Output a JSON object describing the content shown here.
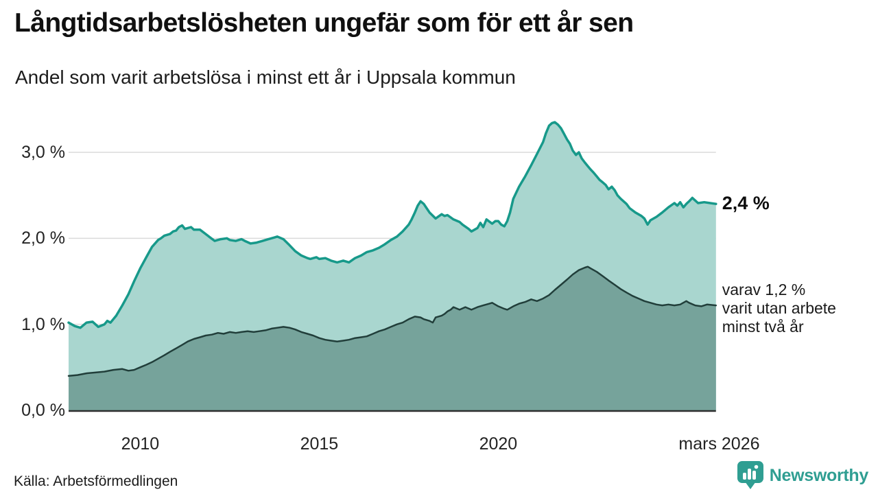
{
  "chart_data": {
    "type": "area",
    "title": "Långtidsarbetslösheten ungefär som för ett år sen",
    "subtitle": "Andel som varit arbetslösa i minst ett år i Uppsala kommun",
    "unit": "%",
    "xlim": [
      2008.0,
      2026.17
    ],
    "ylim": [
      0,
      3.5
    ],
    "grid": "horizontal",
    "legend_position": "right-annotations",
    "x_ticks": [
      {
        "label": "2010",
        "year": 2010
      },
      {
        "label": "2015",
        "year": 2015
      },
      {
        "label": "2020",
        "year": 2020
      },
      {
        "label": "mars 2026",
        "year": 2026.17
      }
    ],
    "y_ticks": [
      {
        "label": "0,0 %",
        "value": 0
      },
      {
        "label": "1,0 %",
        "value": 1
      },
      {
        "label": "2,0 %",
        "value": 2
      },
      {
        "label": "3,0 %",
        "value": 3
      }
    ],
    "series": [
      {
        "id": "one_year",
        "name": "Andel arbetslösa minst ett år",
        "line_color": "#17998a",
        "fill_color": "#a9d6cf",
        "end_value": 2.4,
        "end_label": "2,4 %",
        "points": [
          [
            2008.0,
            1.02
          ],
          [
            2008.17,
            0.98
          ],
          [
            2008.33,
            0.96
          ],
          [
            2008.5,
            1.02
          ],
          [
            2008.67,
            1.03
          ],
          [
            2008.83,
            0.97
          ],
          [
            2009.0,
            1.0
          ],
          [
            2009.08,
            1.04
          ],
          [
            2009.17,
            1.02
          ],
          [
            2009.33,
            1.1
          ],
          [
            2009.5,
            1.22
          ],
          [
            2009.67,
            1.35
          ],
          [
            2009.83,
            1.5
          ],
          [
            2010.0,
            1.65
          ],
          [
            2010.17,
            1.78
          ],
          [
            2010.33,
            1.9
          ],
          [
            2010.5,
            1.98
          ],
          [
            2010.58,
            2.0
          ],
          [
            2010.67,
            2.03
          ],
          [
            2010.83,
            2.05
          ],
          [
            2010.92,
            2.08
          ],
          [
            2011.0,
            2.09
          ],
          [
            2011.08,
            2.13
          ],
          [
            2011.17,
            2.15
          ],
          [
            2011.25,
            2.11
          ],
          [
            2011.42,
            2.13
          ],
          [
            2011.5,
            2.1
          ],
          [
            2011.67,
            2.1
          ],
          [
            2011.83,
            2.05
          ],
          [
            2011.92,
            2.02
          ],
          [
            2012.08,
            1.97
          ],
          [
            2012.25,
            1.99
          ],
          [
            2012.42,
            2.0
          ],
          [
            2012.5,
            1.98
          ],
          [
            2012.67,
            1.97
          ],
          [
            2012.83,
            1.99
          ],
          [
            2012.92,
            1.97
          ],
          [
            2013.08,
            1.94
          ],
          [
            2013.25,
            1.95
          ],
          [
            2013.42,
            1.97
          ],
          [
            2013.58,
            1.99
          ],
          [
            2013.75,
            2.01
          ],
          [
            2013.83,
            2.02
          ],
          [
            2014.0,
            1.99
          ],
          [
            2014.17,
            1.92
          ],
          [
            2014.33,
            1.85
          ],
          [
            2014.5,
            1.8
          ],
          [
            2014.67,
            1.77
          ],
          [
            2014.75,
            1.76
          ],
          [
            2014.92,
            1.78
          ],
          [
            2015.0,
            1.76
          ],
          [
            2015.17,
            1.77
          ],
          [
            2015.33,
            1.74
          ],
          [
            2015.5,
            1.72
          ],
          [
            2015.67,
            1.74
          ],
          [
            2015.83,
            1.72
          ],
          [
            2016.0,
            1.77
          ],
          [
            2016.17,
            1.8
          ],
          [
            2016.33,
            1.84
          ],
          [
            2016.5,
            1.86
          ],
          [
            2016.67,
            1.89
          ],
          [
            2016.83,
            1.93
          ],
          [
            2017.0,
            1.98
          ],
          [
            2017.17,
            2.02
          ],
          [
            2017.33,
            2.08
          ],
          [
            2017.5,
            2.16
          ],
          [
            2017.58,
            2.22
          ],
          [
            2017.67,
            2.3
          ],
          [
            2017.75,
            2.38
          ],
          [
            2017.83,
            2.43
          ],
          [
            2017.92,
            2.4
          ],
          [
            2018.0,
            2.35
          ],
          [
            2018.08,
            2.3
          ],
          [
            2018.25,
            2.23
          ],
          [
            2018.42,
            2.28
          ],
          [
            2018.5,
            2.26
          ],
          [
            2018.58,
            2.27
          ],
          [
            2018.75,
            2.22
          ],
          [
            2018.92,
            2.19
          ],
          [
            2019.0,
            2.16
          ],
          [
            2019.17,
            2.11
          ],
          [
            2019.25,
            2.08
          ],
          [
            2019.42,
            2.12
          ],
          [
            2019.5,
            2.18
          ],
          [
            2019.58,
            2.13
          ],
          [
            2019.67,
            2.22
          ],
          [
            2019.83,
            2.17
          ],
          [
            2019.92,
            2.2
          ],
          [
            2020.0,
            2.2
          ],
          [
            2020.08,
            2.16
          ],
          [
            2020.17,
            2.14
          ],
          [
            2020.25,
            2.2
          ],
          [
            2020.33,
            2.3
          ],
          [
            2020.42,
            2.46
          ],
          [
            2020.58,
            2.6
          ],
          [
            2020.75,
            2.72
          ],
          [
            2020.92,
            2.85
          ],
          [
            2021.08,
            2.98
          ],
          [
            2021.25,
            3.12
          ],
          [
            2021.33,
            3.22
          ],
          [
            2021.42,
            3.31
          ],
          [
            2021.5,
            3.34
          ],
          [
            2021.58,
            3.35
          ],
          [
            2021.67,
            3.32
          ],
          [
            2021.75,
            3.28
          ],
          [
            2021.83,
            3.22
          ],
          [
            2021.92,
            3.15
          ],
          [
            2022.0,
            3.1
          ],
          [
            2022.08,
            3.02
          ],
          [
            2022.17,
            2.97
          ],
          [
            2022.25,
            3.0
          ],
          [
            2022.33,
            2.93
          ],
          [
            2022.42,
            2.88
          ],
          [
            2022.5,
            2.84
          ],
          [
            2022.58,
            2.8
          ],
          [
            2022.67,
            2.76
          ],
          [
            2022.75,
            2.72
          ],
          [
            2022.83,
            2.68
          ],
          [
            2022.92,
            2.65
          ],
          [
            2023.0,
            2.62
          ],
          [
            2023.08,
            2.57
          ],
          [
            2023.17,
            2.6
          ],
          [
            2023.25,
            2.56
          ],
          [
            2023.33,
            2.5
          ],
          [
            2023.42,
            2.46
          ],
          [
            2023.5,
            2.43
          ],
          [
            2023.58,
            2.4
          ],
          [
            2023.67,
            2.35
          ],
          [
            2023.83,
            2.3
          ],
          [
            2024.0,
            2.26
          ],
          [
            2024.08,
            2.23
          ],
          [
            2024.17,
            2.16
          ],
          [
            2024.25,
            2.21
          ],
          [
            2024.42,
            2.25
          ],
          [
            2024.58,
            2.3
          ],
          [
            2024.75,
            2.36
          ],
          [
            2024.92,
            2.41
          ],
          [
            2025.0,
            2.38
          ],
          [
            2025.08,
            2.42
          ],
          [
            2025.17,
            2.36
          ],
          [
            2025.25,
            2.4
          ],
          [
            2025.33,
            2.43
          ],
          [
            2025.42,
            2.47
          ],
          [
            2025.5,
            2.44
          ],
          [
            2025.58,
            2.41
          ],
          [
            2025.75,
            2.42
          ],
          [
            2025.92,
            2.41
          ],
          [
            2026.08,
            2.4
          ]
        ]
      },
      {
        "id": "two_years",
        "name": "varav varit utan arbete minst två år",
        "line_color": "#213e3a",
        "fill_color": "#76a39b",
        "end_value": 1.2,
        "end_label": "varav 1,2 %\nvarit utan arbete\nminst två år",
        "points": [
          [
            2008.0,
            0.4
          ],
          [
            2008.25,
            0.41
          ],
          [
            2008.5,
            0.43
          ],
          [
            2008.75,
            0.44
          ],
          [
            2009.0,
            0.45
          ],
          [
            2009.25,
            0.47
          ],
          [
            2009.5,
            0.48
          ],
          [
            2009.67,
            0.46
          ],
          [
            2009.83,
            0.47
          ],
          [
            2010.0,
            0.5
          ],
          [
            2010.17,
            0.53
          ],
          [
            2010.33,
            0.56
          ],
          [
            2010.5,
            0.6
          ],
          [
            2010.67,
            0.64
          ],
          [
            2010.83,
            0.68
          ],
          [
            2011.0,
            0.72
          ],
          [
            2011.17,
            0.76
          ],
          [
            2011.33,
            0.8
          ],
          [
            2011.5,
            0.83
          ],
          [
            2011.67,
            0.85
          ],
          [
            2011.83,
            0.87
          ],
          [
            2012.0,
            0.88
          ],
          [
            2012.17,
            0.9
          ],
          [
            2012.33,
            0.89
          ],
          [
            2012.5,
            0.91
          ],
          [
            2012.67,
            0.9
          ],
          [
            2012.83,
            0.91
          ],
          [
            2013.0,
            0.92
          ],
          [
            2013.17,
            0.91
          ],
          [
            2013.33,
            0.92
          ],
          [
            2013.5,
            0.93
          ],
          [
            2013.67,
            0.95
          ],
          [
            2013.83,
            0.96
          ],
          [
            2014.0,
            0.97
          ],
          [
            2014.17,
            0.96
          ],
          [
            2014.33,
            0.94
          ],
          [
            2014.5,
            0.91
          ],
          [
            2014.67,
            0.89
          ],
          [
            2014.83,
            0.87
          ],
          [
            2015.0,
            0.84
          ],
          [
            2015.17,
            0.82
          ],
          [
            2015.33,
            0.81
          ],
          [
            2015.5,
            0.8
          ],
          [
            2015.67,
            0.81
          ],
          [
            2015.83,
            0.82
          ],
          [
            2016.0,
            0.84
          ],
          [
            2016.17,
            0.85
          ],
          [
            2016.33,
            0.86
          ],
          [
            2016.5,
            0.89
          ],
          [
            2016.67,
            0.92
          ],
          [
            2016.83,
            0.94
          ],
          [
            2017.0,
            0.97
          ],
          [
            2017.17,
            1.0
          ],
          [
            2017.33,
            1.02
          ],
          [
            2017.5,
            1.06
          ],
          [
            2017.67,
            1.09
          ],
          [
            2017.83,
            1.08
          ],
          [
            2017.92,
            1.06
          ],
          [
            2018.08,
            1.04
          ],
          [
            2018.17,
            1.02
          ],
          [
            2018.25,
            1.08
          ],
          [
            2018.42,
            1.1
          ],
          [
            2018.5,
            1.12
          ],
          [
            2018.58,
            1.15
          ],
          [
            2018.67,
            1.17
          ],
          [
            2018.75,
            1.2
          ],
          [
            2018.92,
            1.17
          ],
          [
            2019.08,
            1.2
          ],
          [
            2019.25,
            1.17
          ],
          [
            2019.42,
            1.2
          ],
          [
            2019.58,
            1.22
          ],
          [
            2019.75,
            1.24
          ],
          [
            2019.83,
            1.25
          ],
          [
            2020.0,
            1.21
          ],
          [
            2020.17,
            1.18
          ],
          [
            2020.25,
            1.17
          ],
          [
            2020.42,
            1.21
          ],
          [
            2020.58,
            1.24
          ],
          [
            2020.75,
            1.26
          ],
          [
            2020.92,
            1.29
          ],
          [
            2021.08,
            1.27
          ],
          [
            2021.25,
            1.3
          ],
          [
            2021.42,
            1.34
          ],
          [
            2021.58,
            1.4
          ],
          [
            2021.75,
            1.46
          ],
          [
            2021.92,
            1.52
          ],
          [
            2022.08,
            1.58
          ],
          [
            2022.25,
            1.63
          ],
          [
            2022.42,
            1.66
          ],
          [
            2022.5,
            1.67
          ],
          [
            2022.58,
            1.65
          ],
          [
            2022.75,
            1.61
          ],
          [
            2022.92,
            1.56
          ],
          [
            2023.08,
            1.51
          ],
          [
            2023.25,
            1.46
          ],
          [
            2023.42,
            1.41
          ],
          [
            2023.58,
            1.37
          ],
          [
            2023.75,
            1.33
          ],
          [
            2023.92,
            1.3
          ],
          [
            2024.08,
            1.27
          ],
          [
            2024.25,
            1.25
          ],
          [
            2024.42,
            1.23
          ],
          [
            2024.58,
            1.22
          ],
          [
            2024.75,
            1.23
          ],
          [
            2024.92,
            1.22
          ],
          [
            2025.08,
            1.23
          ],
          [
            2025.25,
            1.27
          ],
          [
            2025.33,
            1.25
          ],
          [
            2025.5,
            1.22
          ],
          [
            2025.67,
            1.21
          ],
          [
            2025.83,
            1.23
          ],
          [
            2026.08,
            1.22
          ]
        ]
      }
    ]
  },
  "footer": {
    "source": "Källa: Arbetsförmedlingen",
    "brand": "Newsworthy"
  },
  "colors": {
    "grid": "#dadada",
    "axis": "#2e2e2e",
    "brand_teal": "#2f9e92",
    "background": "#ffffff"
  }
}
